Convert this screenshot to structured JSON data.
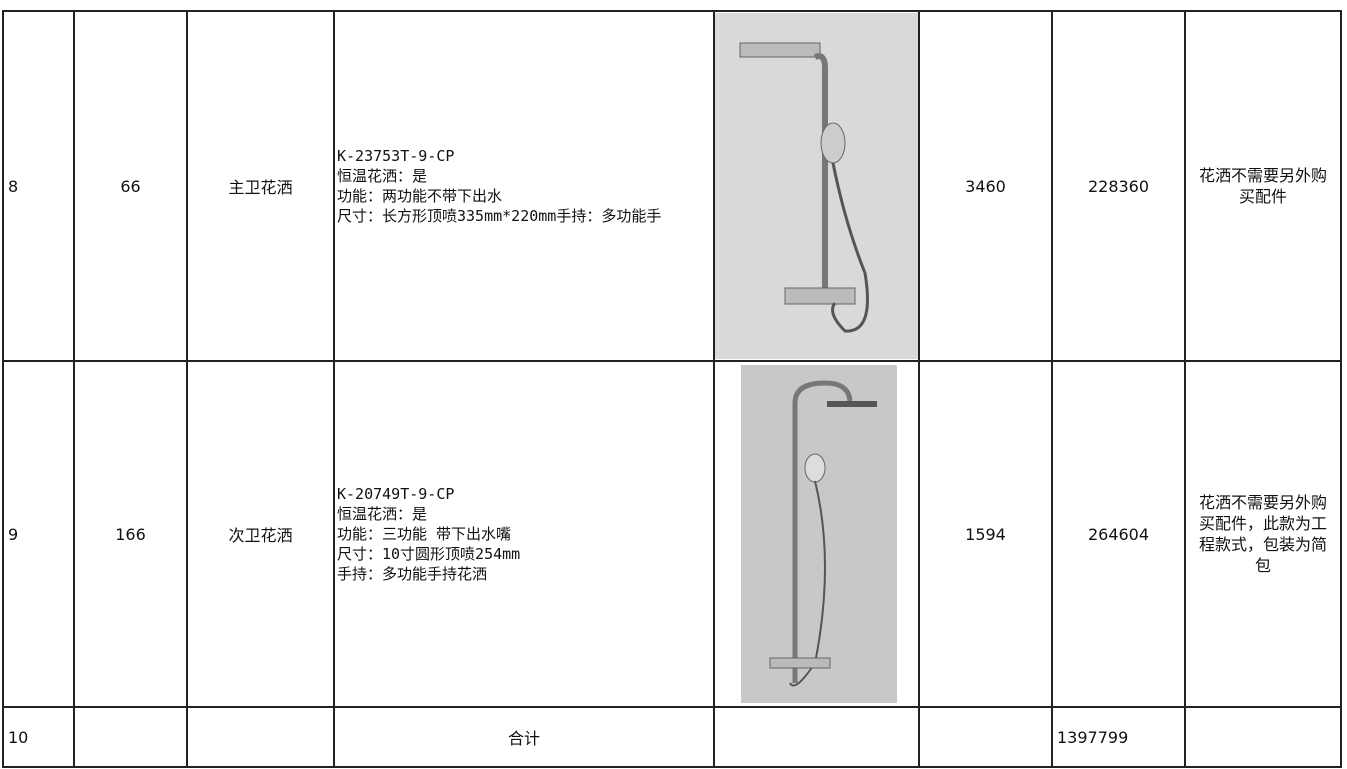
{
  "table": {
    "rows": [
      {
        "no": "8",
        "qty": "66",
        "name": "主卫花洒",
        "spec": [
          "K-23753T-9-CP",
          "恒温花洒：是",
          "功能：两功能不带下出水",
          "尺寸：长方形顶喷335mm*220mm手持：多功能手"
        ],
        "price": "3460",
        "total": "228360",
        "note": "花洒不需要另外购买配件"
      },
      {
        "no": "9",
        "qty": "166",
        "name": "次卫花洒",
        "spec": [
          "K-20749T-9-CP",
          "恒温花洒：是",
          "功能：三功能 带下出水嘴",
          "尺寸：10寸圆形顶喷254mm",
          "手持：多功能手持花洒"
        ],
        "price": "1594",
        "total": "264604",
        "note": "花洒不需要另外购买配件，此款为工程款式，包装为简包"
      },
      {
        "no": "10",
        "label": "合计",
        "total": "1397799"
      }
    ]
  }
}
